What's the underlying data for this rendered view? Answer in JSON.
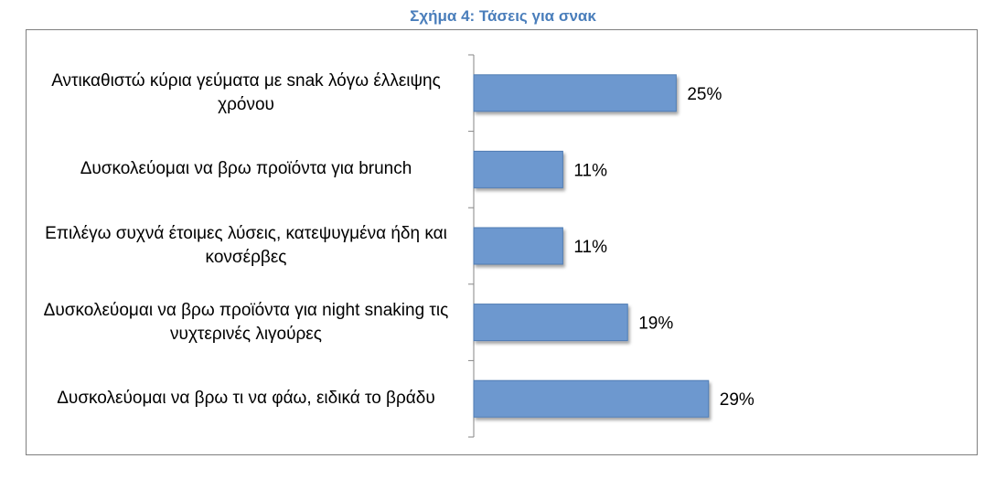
{
  "chart_data": {
    "type": "bar",
    "orientation": "horizontal",
    "title": "Σχήμα 4: Τάσεις για σνακ",
    "categories": [
      "Αντικαθιστώ κύρια γεύματα με snak λόγω έλλειψης χρόνου",
      "Δυσκολεύομαι να βρω προϊόντα για brunch",
      "Επιλέγω συχνά έτοιμες λύσεις, κατεψυγμένα ήδη και κονσέρβες",
      "Δυσκολεύομαι να βρω προϊόντα για night snaking τις νυχτερινές λιγούρες",
      "Δυσκολεύομαι να βρω τι να φάω, ειδικά το βράδυ"
    ],
    "values": [
      25,
      11,
      11,
      19,
      29
    ],
    "value_labels": [
      "25%",
      "11%",
      "11%",
      "19%",
      "29%"
    ],
    "xlim": [
      0,
      55
    ],
    "grid": false,
    "legend": "none",
    "bar_color": "#6d98cf",
    "bar_edge_color": "#4f7cb3"
  }
}
